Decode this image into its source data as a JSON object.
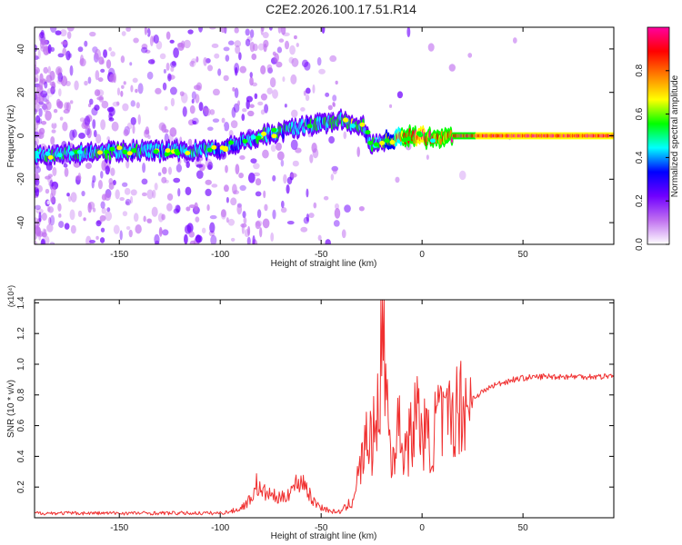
{
  "title": "C2E2.2026.100.17.51.R14",
  "chart_data": [
    {
      "type": "heatmap",
      "name": "spectrogram",
      "xlabel": "Height of straight line (km)",
      "ylabel": "Frequency (Hz)",
      "xlim": [
        -192,
        95
      ],
      "ylim": [
        -50,
        50
      ],
      "xticks": [
        -150,
        -100,
        -50,
        0,
        50
      ],
      "yticks": [
        -40,
        -20,
        0,
        20,
        40
      ],
      "colorbar": {
        "label": "Normalized spectral amplitude",
        "range": [
          0,
          1
        ],
        "ticks": [
          "0.0",
          "0.2",
          "0.4",
          "0.6",
          "0.8"
        ],
        "colors": [
          "#ffffff",
          "#c070f0",
          "#7000ff",
          "#0000ff",
          "#00ffff",
          "#00ff00",
          "#ffff00",
          "#ff8000",
          "#ff0000",
          "#ff00a0"
        ]
      },
      "trace": {
        "x": [
          -192,
          -170,
          -150,
          -130,
          -110,
          -100,
          -90,
          -80,
          -70,
          -60,
          -50,
          -40,
          -35,
          -30,
          -27,
          -25,
          -20,
          -15,
          -10,
          -5,
          0,
          5,
          10,
          15,
          20,
          50,
          95
        ],
        "freq": [
          -9,
          -8,
          -7,
          -7,
          -7,
          -6,
          -3,
          0,
          2,
          4,
          6,
          7,
          6,
          5,
          1,
          -4,
          -3,
          -2,
          -1,
          0,
          0,
          -1,
          -1,
          0,
          0,
          0,
          0
        ],
        "amplitude": [
          0.5,
          0.5,
          0.5,
          0.45,
          0.5,
          0.4,
          0.45,
          0.5,
          0.5,
          0.5,
          0.5,
          0.55,
          0.6,
          0.55,
          0.4,
          0.5,
          0.6,
          0.7,
          0.85,
          0.95,
          0.98,
          0.9,
          0.85,
          0.9,
          0.95,
          1.0,
          1.0
        ]
      }
    },
    {
      "type": "line",
      "name": "snr",
      "xlabel": "Height of straight line (km)",
      "ylabel": "SNR (10 * v/v)",
      "scale_label": "(x10⁴)",
      "xlim": [
        -192,
        95
      ],
      "ylim": [
        0,
        1.42
      ],
      "xticks": [
        -150,
        -100,
        -50,
        0,
        50
      ],
      "yticks": [
        0.2,
        0.4,
        0.6,
        0.8,
        1.0,
        1.2,
        1.4
      ],
      "color": "#f03030",
      "series": [
        {
          "name": "SNR",
          "x": [
            -192,
            -150,
            -100,
            -95,
            -90,
            -85,
            -82,
            -80,
            -75,
            -70,
            -65,
            -60,
            -57,
            -55,
            -50,
            -45,
            -40,
            -35,
            -33,
            -30,
            -27,
            -25,
            -22,
            -20,
            -19,
            -18,
            -16,
            -15,
            -12,
            -10,
            -8,
            -5,
            -3,
            0,
            3,
            5,
            8,
            10,
            12,
            15,
            18,
            20,
            25,
            30,
            35,
            40,
            45,
            50,
            60,
            70,
            80,
            90,
            95
          ],
          "values": [
            0.03,
            0.03,
            0.03,
            0.04,
            0.06,
            0.12,
            0.22,
            0.17,
            0.15,
            0.12,
            0.18,
            0.25,
            0.2,
            0.12,
            0.07,
            0.04,
            0.04,
            0.1,
            0.2,
            0.35,
            0.55,
            0.45,
            0.75,
            1.05,
            1.4,
            0.9,
            0.5,
            0.35,
            0.6,
            0.5,
            0.45,
            0.55,
            0.7,
            0.58,
            0.5,
            0.48,
            0.7,
            0.6,
            0.62,
            0.68,
            0.72,
            0.75,
            0.78,
            0.82,
            0.86,
            0.88,
            0.9,
            0.91,
            0.92,
            0.92,
            0.92,
            0.92,
            0.93
          ]
        }
      ]
    }
  ]
}
